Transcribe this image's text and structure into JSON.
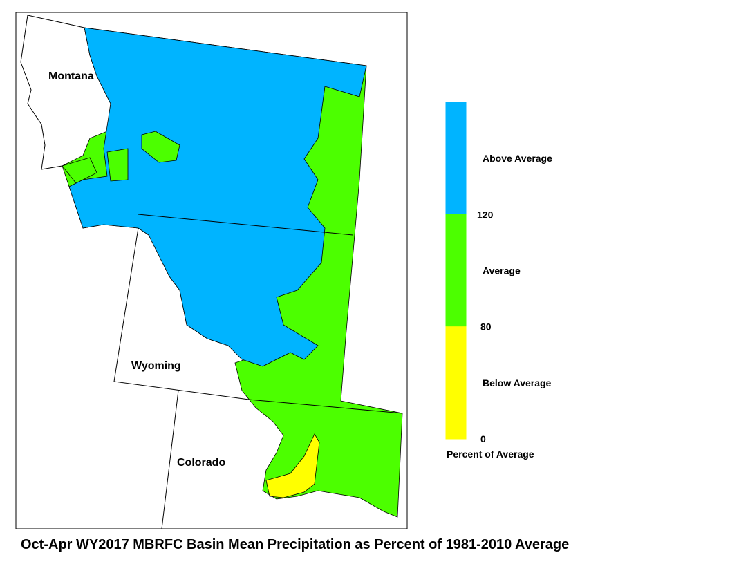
{
  "title": "Oct-Apr WY2017 MBRFC Basin Mean Precipitation as Percent of 1981-2010 Average",
  "states": [
    "Montana",
    "Wyoming",
    "Colorado"
  ],
  "legend": {
    "caption": "Percent of Average",
    "bins": [
      {
        "label": "Above Average",
        "color": "#00b4ff"
      },
      {
        "label": "Average",
        "color": "#4cff00"
      },
      {
        "label": "Below Average",
        "color": "#ffff00"
      }
    ],
    "ticks": [
      120,
      80,
      0
    ]
  }
}
